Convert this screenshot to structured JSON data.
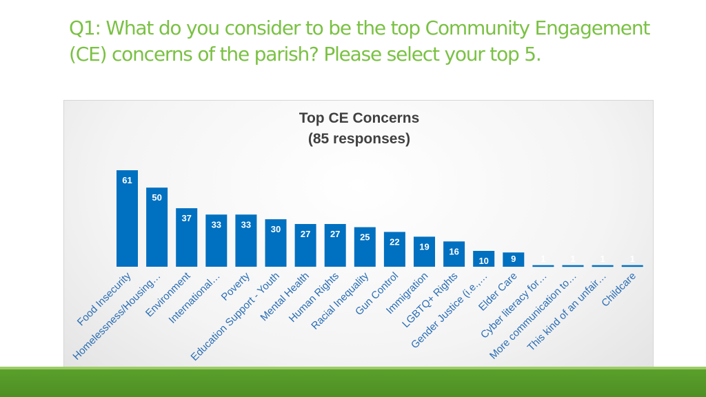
{
  "slide": {
    "title": "Q1: What do you consider to be the top Community Engagement (CE) concerns of the parish? Please select your top 5."
  },
  "colors": {
    "title": "#7ac143",
    "bar": "#0070c0",
    "band": "#5aa02c"
  },
  "chart_data": {
    "type": "bar",
    "title": "Top CE Concerns",
    "subtitle": "(85 responses)",
    "categories": [
      "Food Insecurity",
      "Homelessness/Housing…",
      "Environment",
      "International…",
      "Poverty",
      "Education Support - Youth",
      "Mental Health",
      "Human Rights",
      "Racial Inequality",
      "Gun Control",
      "Immigration",
      "LGBTQ+ Rights",
      "Gender Justice (i.e.,…",
      "Elder Care",
      "Cyber literacy for…",
      "More communication to…",
      "This kind of an unfair…",
      "Childcare"
    ],
    "values": [
      61,
      50,
      37,
      33,
      33,
      30,
      27,
      27,
      25,
      22,
      19,
      16,
      10,
      9,
      1,
      1,
      1,
      1
    ],
    "ylim": [
      0,
      61
    ],
    "grid": false,
    "legend": "none",
    "data_labels": true
  }
}
